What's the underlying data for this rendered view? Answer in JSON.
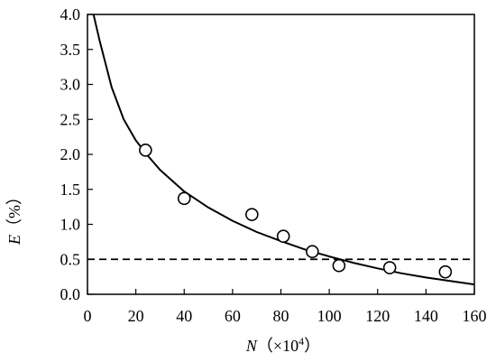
{
  "chart_data": {
    "type": "scatter",
    "x_label_var": "N",
    "x_label_unit": "（×10",
    "x_label_sup": "4",
    "x_label_close": "）",
    "y_label_var": "E",
    "y_label_unit": "（%）",
    "xlim": [
      0,
      160
    ],
    "ylim": [
      0,
      4.0
    ],
    "x_ticks": [
      "0",
      "20",
      "40",
      "60",
      "80",
      "100",
      "120",
      "140",
      "160"
    ],
    "y_ticks": [
      "0.0",
      "0.5",
      "1.0",
      "1.5",
      "2.0",
      "2.5",
      "3.0",
      "3.5",
      "4.0"
    ],
    "series": [
      {
        "kind": "points",
        "marker": "open-circle",
        "x": [
          24,
          40,
          68,
          81,
          93,
          104,
          125,
          148
        ],
        "y": [
          2.06,
          1.37,
          1.14,
          0.83,
          0.61,
          0.41,
          0.38,
          0.32
        ]
      },
      {
        "kind": "fit-curve",
        "style": "solid",
        "x": [
          2.5,
          5,
          10,
          15,
          20,
          25,
          30,
          40,
          50,
          60,
          70,
          80,
          90,
          100,
          110,
          120,
          130,
          140,
          150,
          160
        ],
        "y": [
          4.0,
          3.63,
          2.96,
          2.5,
          2.2,
          1.98,
          1.78,
          1.47,
          1.24,
          1.05,
          0.89,
          0.76,
          0.64,
          0.54,
          0.45,
          0.37,
          0.3,
          0.24,
          0.19,
          0.14
        ]
      },
      {
        "kind": "reference-line",
        "style": "dashed",
        "y_value": 0.5
      }
    ],
    "grid": false,
    "legend": "none"
  }
}
